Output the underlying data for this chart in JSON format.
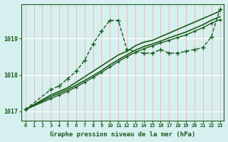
{
  "xlabel": "Graphe pression niveau de la mer (hPa)",
  "bg_color": "#d6f0f0",
  "grid_color_x": "#ffaaaa",
  "grid_color_y": "#ffffff",
  "line_color": "#1a5c1a",
  "x_ticks": [
    0,
    1,
    2,
    3,
    4,
    5,
    6,
    7,
    8,
    9,
    10,
    11,
    12,
    13,
    14,
    15,
    16,
    17,
    18,
    19,
    20,
    21,
    22,
    23
  ],
  "ylim": [
    1016.75,
    1019.95
  ],
  "yticks": [
    1017,
    1018,
    1019
  ],
  "figsize": [
    3.2,
    2.0
  ],
  "series": [
    {
      "x": [
        0,
        3,
        4,
        5,
        6,
        7,
        8,
        9,
        10,
        11,
        12,
        14,
        15,
        16,
        17,
        18,
        19,
        20,
        21,
        22,
        23
      ],
      "y": [
        1017.05,
        1017.6,
        1017.7,
        1017.9,
        1018.1,
        1018.4,
        1018.85,
        1019.2,
        1019.5,
        1019.5,
        1018.7,
        1018.6,
        1018.6,
        1018.7,
        1018.6,
        1018.6,
        1018.65,
        1018.7,
        1018.75,
        1019.05,
        1019.8
      ],
      "marker": "+",
      "markersize": 4,
      "linewidth": 1.0,
      "linestyle": "--",
      "zorder": 4
    },
    {
      "x": [
        0,
        3,
        4,
        5,
        6,
        7,
        8,
        9,
        10,
        11,
        12,
        13,
        14,
        15,
        16,
        17,
        18,
        19,
        20,
        21,
        22,
        23
      ],
      "y": [
        1017.05,
        1017.45,
        1017.55,
        1017.65,
        1017.8,
        1017.95,
        1018.1,
        1018.25,
        1018.4,
        1018.55,
        1018.65,
        1018.8,
        1018.9,
        1018.95,
        1019.05,
        1019.15,
        1019.25,
        1019.35,
        1019.45,
        1019.55,
        1019.65,
        1019.75
      ],
      "marker": null,
      "markersize": 0,
      "linewidth": 1.2,
      "linestyle": "-",
      "zorder": 3
    },
    {
      "x": [
        0,
        3,
        4,
        5,
        6,
        7,
        8,
        9,
        10,
        11,
        12,
        13,
        14,
        15,
        16,
        17,
        18,
        19,
        20,
        21,
        22,
        23
      ],
      "y": [
        1017.05,
        1017.4,
        1017.5,
        1017.6,
        1017.72,
        1017.85,
        1017.98,
        1018.12,
        1018.28,
        1018.42,
        1018.55,
        1018.68,
        1018.78,
        1018.85,
        1018.93,
        1019.02,
        1019.1,
        1019.18,
        1019.28,
        1019.38,
        1019.5,
        1019.6
      ],
      "marker": null,
      "markersize": 0,
      "linewidth": 1.2,
      "linestyle": "-",
      "zorder": 3
    },
    {
      "x": [
        0,
        3,
        4,
        5,
        6,
        7,
        8,
        9,
        10,
        11,
        12,
        13,
        14,
        15,
        16,
        17,
        18,
        19,
        20,
        21,
        22,
        23
      ],
      "y": [
        1017.05,
        1017.35,
        1017.45,
        1017.55,
        1017.67,
        1017.8,
        1017.93,
        1018.07,
        1018.22,
        1018.37,
        1018.5,
        1018.62,
        1018.72,
        1018.8,
        1018.88,
        1018.95,
        1019.03,
        1019.1,
        1019.2,
        1019.3,
        1019.42,
        1019.52
      ],
      "marker": "+",
      "markersize": 3.5,
      "linewidth": 1.0,
      "linestyle": "-",
      "zorder": 4
    }
  ]
}
